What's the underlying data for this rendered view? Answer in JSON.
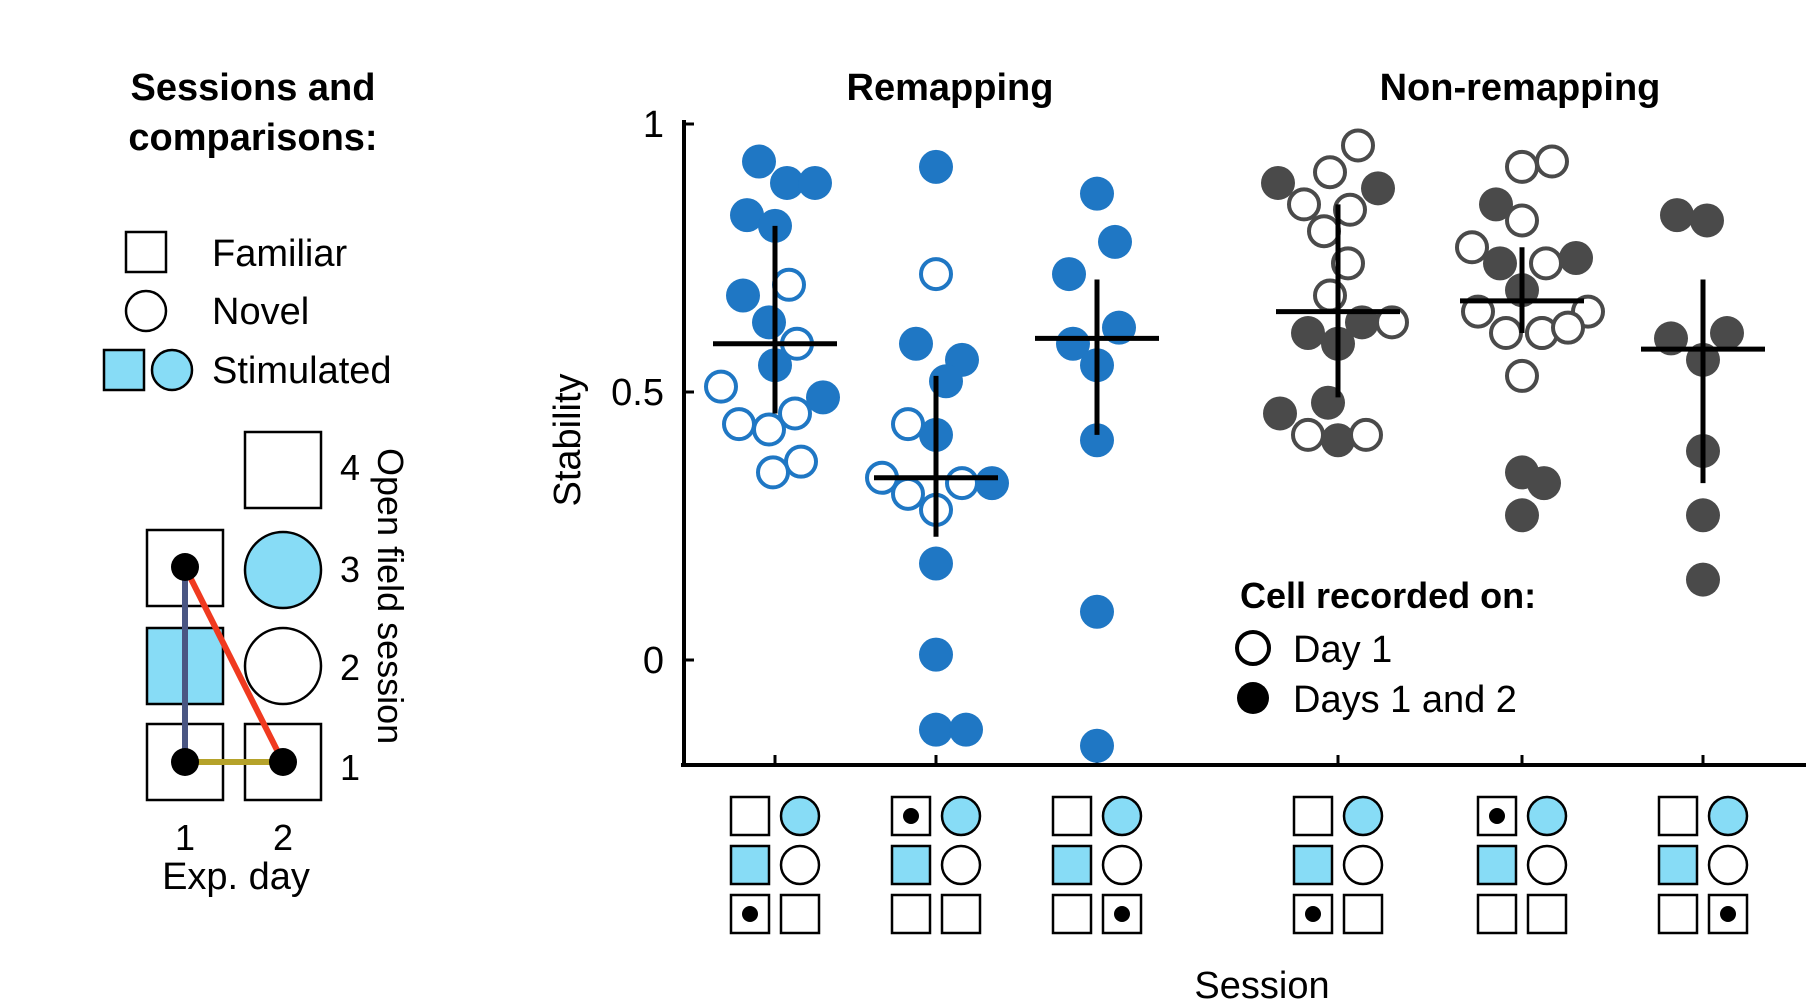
{
  "legend_panel": {
    "title_line1": "Sessions and",
    "title_line2": "comparisons:",
    "familiar": "Familiar",
    "novel": "Novel",
    "stimulated": "Stimulated",
    "session_numbers": [
      "4",
      "3",
      "2",
      "1"
    ],
    "day_numbers": [
      "1",
      "2"
    ],
    "xlabel": "Exp. day",
    "ylabel": "Open field session",
    "colors": {
      "stim_fill": "#87dcf6",
      "line_day1": "#4a5683",
      "line_cross": "#f03a20",
      "line_sess1": "#b5a22a"
    }
  },
  "chart_data": {
    "type": "scatter",
    "group_titles": [
      "Remapping",
      "Non-remapping"
    ],
    "ylabel": "Stability",
    "xlabel": "Session",
    "ylim": [
      -0.2,
      1.02
    ],
    "yticks": [
      {
        "value": 0,
        "label": "0"
      },
      {
        "value": 0.5,
        "label": "0.5"
      },
      {
        "value": 1,
        "label": "1"
      }
    ],
    "legend": {
      "title": "Cell recorded on:",
      "day1": "Day 1",
      "days12": "Days 1 and 2"
    },
    "colors": {
      "remapping": "#1f77c4",
      "nonremapping": "#4a4a4a",
      "stim": "#87dcf6"
    },
    "series": [
      {
        "name": "Remapping 1-1 vs 1-3",
        "group": "remapping",
        "mean": 0.59,
        "err_low": 0.46,
        "err_high": 0.81,
        "filled": [
          {
            "dx": -16,
            "y": 0.93
          },
          {
            "dx": 12,
            "y": 0.89
          },
          {
            "dx": 40,
            "y": 0.89
          },
          {
            "dx": -28,
            "y": 0.83
          },
          {
            "dx": 0,
            "y": 0.81
          },
          {
            "dx": -32,
            "y": 0.68
          },
          {
            "dx": -6,
            "y": 0.63
          },
          {
            "dx": 0,
            "y": 0.55
          },
          {
            "dx": 48,
            "y": 0.49
          }
        ],
        "open": [
          {
            "dx": 14,
            "y": 0.7
          },
          {
            "dx": 22,
            "y": 0.59
          },
          {
            "dx": -54,
            "y": 0.51
          },
          {
            "dx": 20,
            "y": 0.46
          },
          {
            "dx": -36,
            "y": 0.44
          },
          {
            "dx": -6,
            "y": 0.43
          },
          {
            "dx": 26,
            "y": 0.37
          },
          {
            "dx": -2,
            "y": 0.35
          }
        ]
      },
      {
        "name": "Remapping 1-1 vs 2-3",
        "group": "remapping",
        "mean": 0.34,
        "err_low": 0.23,
        "err_high": 0.53,
        "filled": [
          {
            "dx": 0,
            "y": 0.92
          },
          {
            "dx": -20,
            "y": 0.59
          },
          {
            "dx": 26,
            "y": 0.56
          },
          {
            "dx": 10,
            "y": 0.52
          },
          {
            "dx": 0,
            "y": 0.42
          },
          {
            "dx": 56,
            "y": 0.33
          },
          {
            "dx": 0,
            "y": 0.18
          },
          {
            "dx": 0,
            "y": 0.01
          },
          {
            "dx": 0,
            "y": -0.13
          },
          {
            "dx": 30,
            "y": -0.13
          }
        ],
        "open": [
          {
            "dx": 0,
            "y": 0.72
          },
          {
            "dx": -28,
            "y": 0.44
          },
          {
            "dx": -54,
            "y": 0.34
          },
          {
            "dx": -28,
            "y": 0.31
          },
          {
            "dx": 26,
            "y": 0.33
          },
          {
            "dx": 0,
            "y": 0.28
          }
        ]
      },
      {
        "name": "Remapping 2-1 vs 1-3",
        "group": "remapping",
        "mean": 0.6,
        "err_low": 0.42,
        "err_high": 0.71,
        "filled": [
          {
            "dx": 0,
            "y": 0.87
          },
          {
            "dx": 18,
            "y": 0.78
          },
          {
            "dx": -28,
            "y": 0.72
          },
          {
            "dx": 22,
            "y": 0.62
          },
          {
            "dx": -24,
            "y": 0.59
          },
          {
            "dx": 0,
            "y": 0.55
          },
          {
            "dx": 0,
            "y": 0.41
          },
          {
            "dx": 0,
            "y": 0.09
          },
          {
            "dx": 0,
            "y": -0.16
          }
        ],
        "open": []
      },
      {
        "name": "Non-remapping 1-1 vs 1-3",
        "group": "nonremapping",
        "mean": 0.65,
        "err_low": 0.49,
        "err_high": 0.85,
        "filled": [
          {
            "dx": -60,
            "y": 0.89
          },
          {
            "dx": 40,
            "y": 0.88
          },
          {
            "dx": -30,
            "y": 0.61
          },
          {
            "dx": 24,
            "y": 0.63
          },
          {
            "dx": 0,
            "y": 0.59
          },
          {
            "dx": -10,
            "y": 0.48
          },
          {
            "dx": -58,
            "y": 0.46
          },
          {
            "dx": 0,
            "y": 0.41
          }
        ],
        "open": [
          {
            "dx": 20,
            "y": 0.96
          },
          {
            "dx": -8,
            "y": 0.91
          },
          {
            "dx": -34,
            "y": 0.85
          },
          {
            "dx": 12,
            "y": 0.84
          },
          {
            "dx": -14,
            "y": 0.8
          },
          {
            "dx": 10,
            "y": 0.74
          },
          {
            "dx": -8,
            "y": 0.68
          },
          {
            "dx": 54,
            "y": 0.63
          },
          {
            "dx": -30,
            "y": 0.42
          },
          {
            "dx": 28,
            "y": 0.42
          }
        ]
      },
      {
        "name": "Non-remapping 1-1 vs 2-3",
        "group": "nonremapping",
        "mean": 0.67,
        "err_low": 0.61,
        "err_high": 0.77,
        "filled": [
          {
            "dx": -26,
            "y": 0.85
          },
          {
            "dx": -22,
            "y": 0.74
          },
          {
            "dx": 54,
            "y": 0.75
          },
          {
            "dx": 0,
            "y": 0.69
          },
          {
            "dx": 20,
            "y": 0.61
          },
          {
            "dx": 0,
            "y": 0.35
          },
          {
            "dx": 22,
            "y": 0.33
          },
          {
            "dx": 0,
            "y": 0.27
          }
        ],
        "open": [
          {
            "dx": 30,
            "y": 0.93
          },
          {
            "dx": 0,
            "y": 0.92
          },
          {
            "dx": 0,
            "y": 0.82
          },
          {
            "dx": -50,
            "y": 0.77
          },
          {
            "dx": 24,
            "y": 0.74
          },
          {
            "dx": -44,
            "y": 0.65
          },
          {
            "dx": 66,
            "y": 0.65
          },
          {
            "dx": -16,
            "y": 0.61
          },
          {
            "dx": 20,
            "y": 0.61
          },
          {
            "dx": 46,
            "y": 0.62
          },
          {
            "dx": 0,
            "y": 0.53
          }
        ]
      },
      {
        "name": "Non-remapping 2-1 vs 1-3",
        "group": "nonremapping",
        "mean": 0.58,
        "err_low": 0.33,
        "err_high": 0.71,
        "filled": [
          {
            "dx": -26,
            "y": 0.83
          },
          {
            "dx": 4,
            "y": 0.82
          },
          {
            "dx": -32,
            "y": 0.6
          },
          {
            "dx": 24,
            "y": 0.61
          },
          {
            "dx": 0,
            "y": 0.56
          },
          {
            "dx": 0,
            "y": 0.39
          },
          {
            "dx": 0,
            "y": 0.27
          },
          {
            "dx": 0,
            "y": 0.15
          }
        ],
        "open": []
      }
    ],
    "session_icons": [
      {
        "dot": "sess1_day1",
        "stim": "day1_sess2_and_day2_sess3"
      },
      {
        "dot": "sess3_day1",
        "stim": "day1_sess2_and_day2_sess3"
      },
      {
        "dot": "sess1_day2",
        "stim": "day1_sess2_and_day2_sess3"
      },
      {
        "dot": "sess1_day1",
        "stim": "day1_sess2_and_day2_sess3"
      },
      {
        "dot": "sess3_day1",
        "stim": "day1_sess2_and_day2_sess3"
      },
      {
        "dot": "sess1_day2",
        "stim": "day1_sess2_and_day2_sess3"
      }
    ]
  }
}
